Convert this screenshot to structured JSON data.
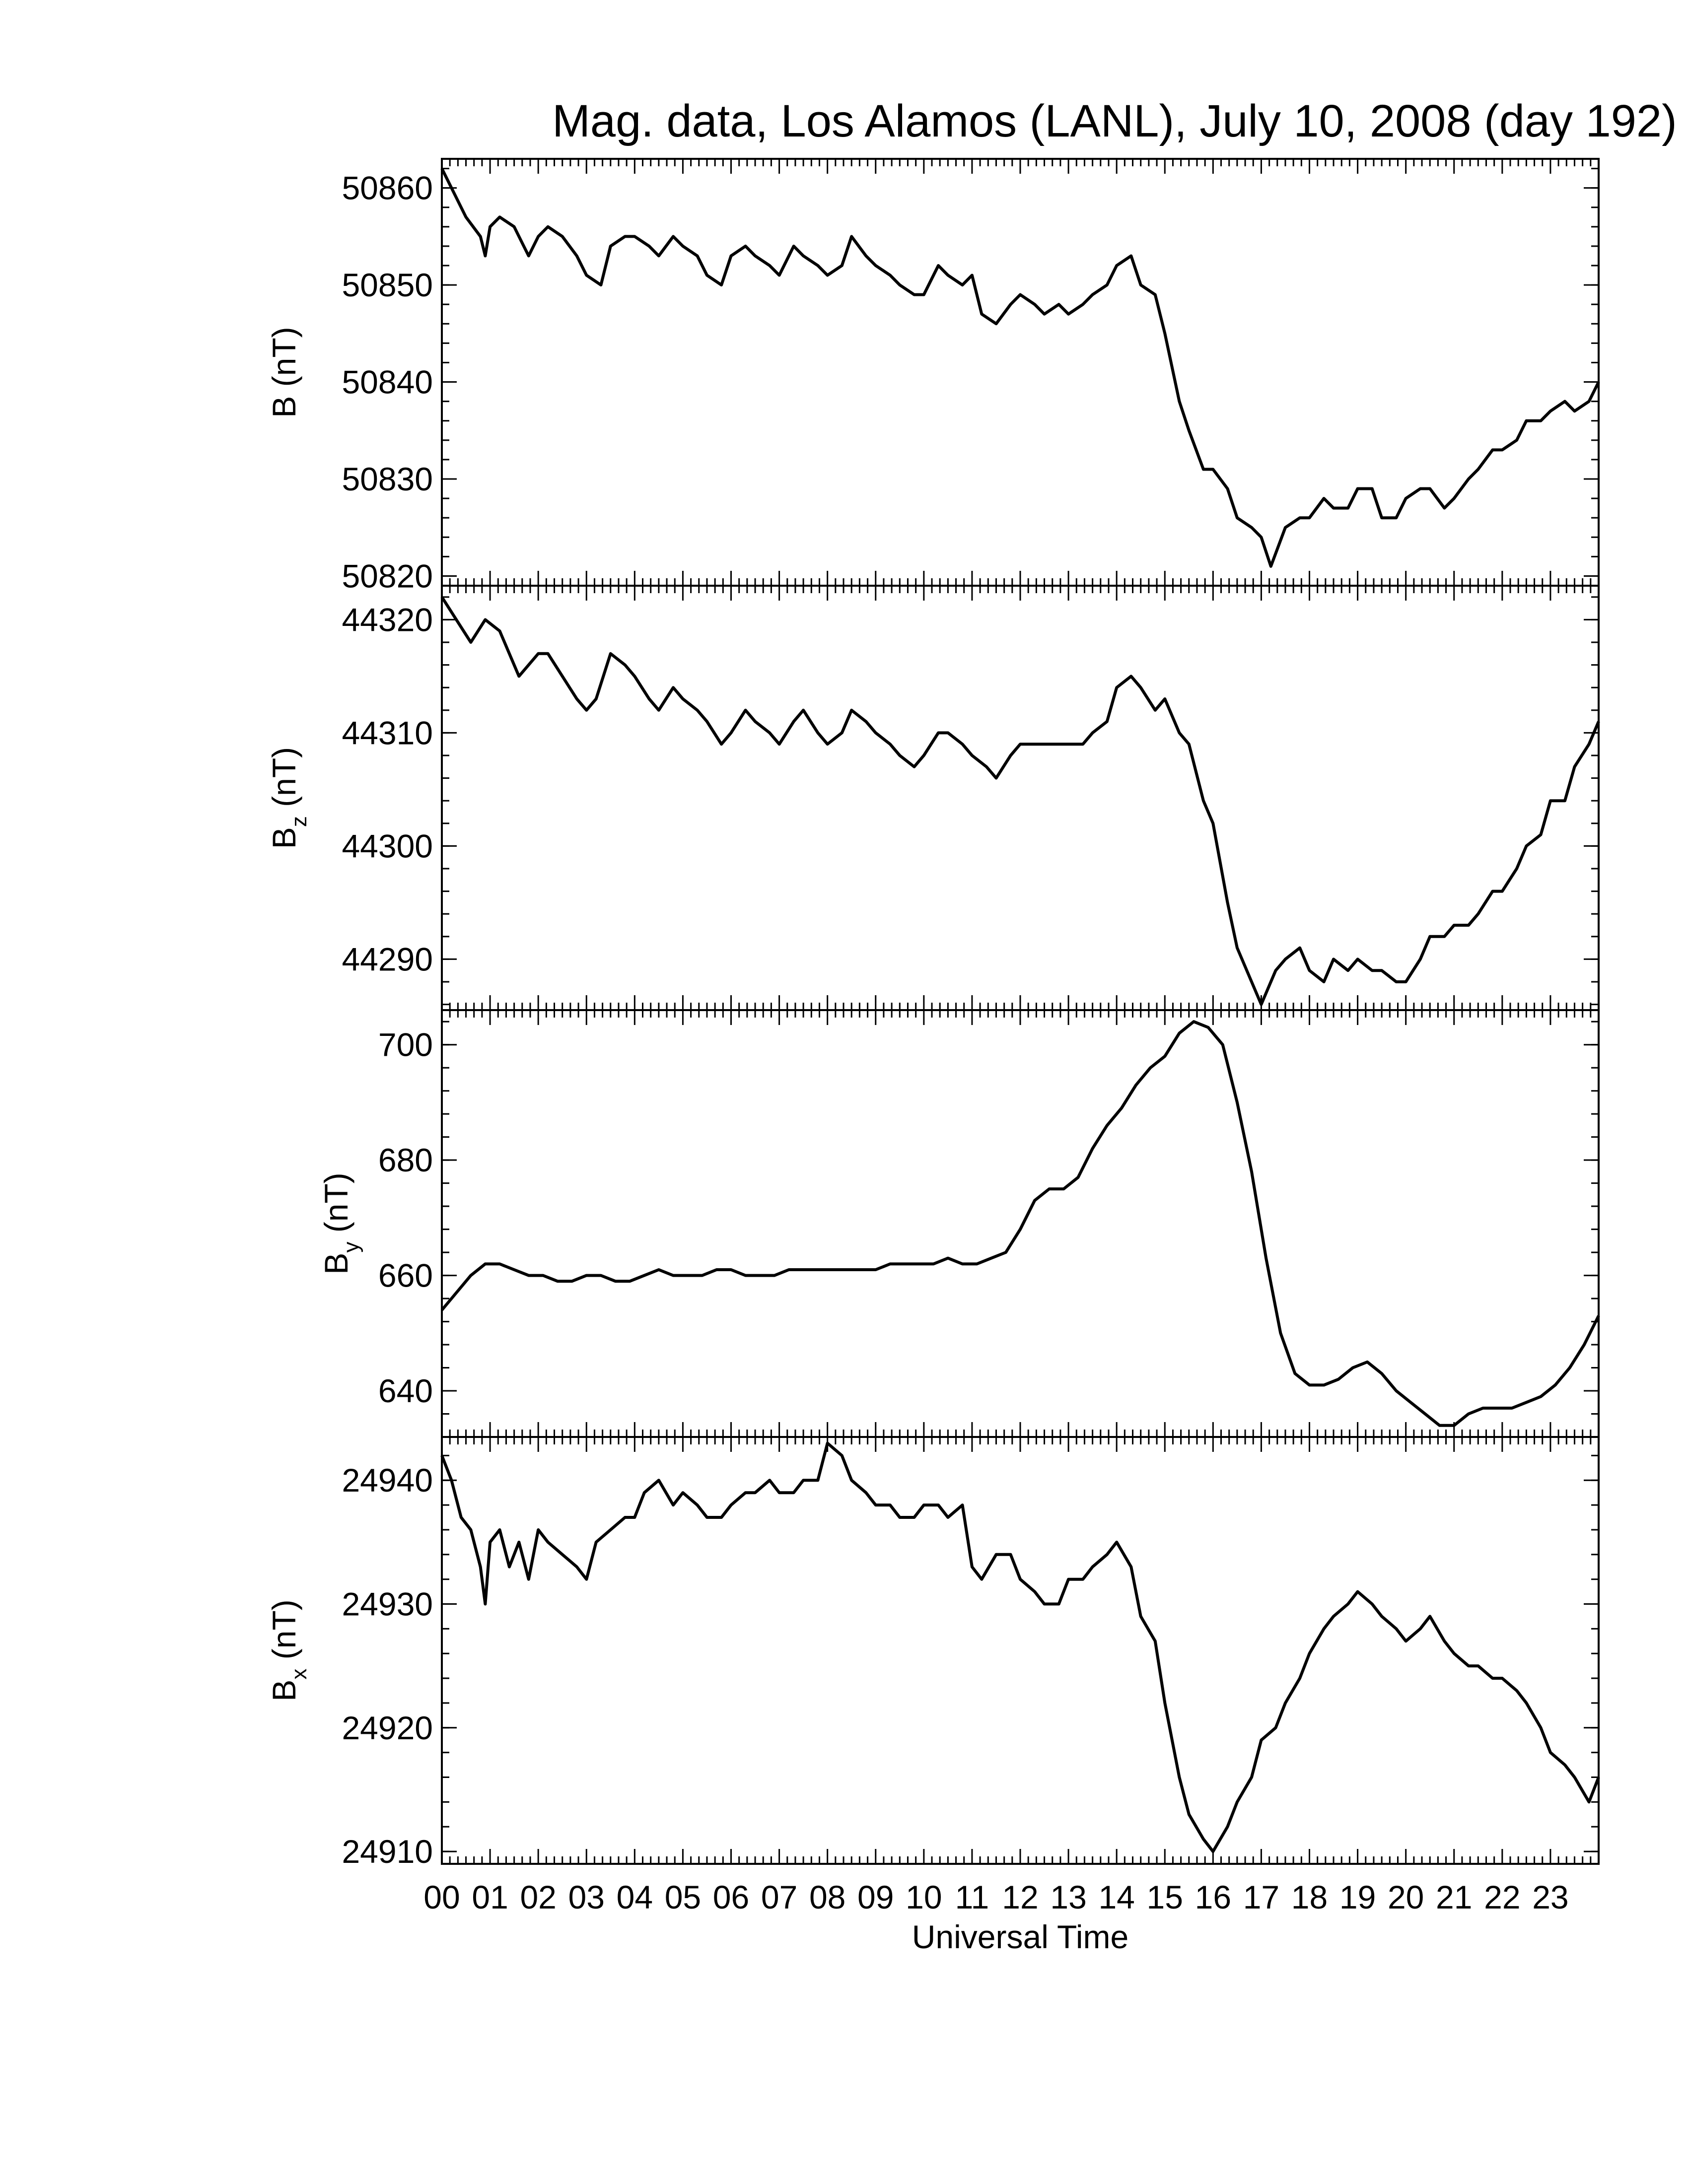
{
  "chart_data": {
    "type": "line",
    "title": "Mag. data, Los Alamos (LANL), July 10, 2008 (day 192)",
    "xlabel": "Universal Time",
    "x_unit": "hour",
    "xlim": [
      0,
      24
    ],
    "x_tick_labels": [
      "00",
      "01",
      "02",
      "03",
      "04",
      "05",
      "06",
      "07",
      "08",
      "09",
      "10",
      "11",
      "12",
      "13",
      "14",
      "15",
      "16",
      "17",
      "18",
      "19",
      "20",
      "21",
      "22",
      "23"
    ],
    "panels": [
      {
        "id": "B",
        "ylabel": {
          "main": "B",
          "sub": "",
          "unit": "(nT)"
        },
        "ylim": [
          50819,
          50863
        ],
        "yticks": [
          "50820",
          "50830",
          "50840",
          "50850",
          "50860"
        ],
        "series": [
          {
            "x": [
              0,
              0.2,
              0.5,
              0.8,
              0.9,
              1.0,
              1.2,
              1.5,
              1.7,
              1.8,
              2.0,
              2.2,
              2.5,
              2.8,
              3.0,
              3.3,
              3.5,
              3.8,
              4.0,
              4.3,
              4.5,
              4.8,
              5.0,
              5.3,
              5.5,
              5.8,
              6.0,
              6.3,
              6.5,
              6.8,
              7.0,
              7.3,
              7.5,
              7.8,
              8.0,
              8.3,
              8.5,
              8.8,
              9.0,
              9.3,
              9.5,
              9.8,
              10.0,
              10.3,
              10.5,
              10.8,
              11.0,
              11.2,
              11.5,
              11.8,
              12.0,
              12.3,
              12.5,
              12.8,
              13.0,
              13.3,
              13.5,
              13.8,
              14.0,
              14.3,
              14.5,
              14.8,
              15.0,
              15.3,
              15.5,
              15.8,
              16.0,
              16.3,
              16.5,
              16.8,
              17.0,
              17.2,
              17.5,
              17.8,
              18.0,
              18.3,
              18.5,
              18.8,
              19.0,
              19.3,
              19.5,
              19.8,
              20.0,
              20.3,
              20.5,
              20.8,
              21.0,
              21.3,
              21.5,
              21.8,
              22.0,
              22.3,
              22.5,
              22.8,
              23.0,
              23.3,
              23.5,
              23.8,
              24.0
            ],
            "y": [
              50862,
              50860,
              50857,
              50855,
              50853,
              50856,
              50857,
              50856,
              50854,
              50853,
              50855,
              50856,
              50855,
              50853,
              50851,
              50850,
              50854,
              50855,
              50855,
              50854,
              50853,
              50855,
              50854,
              50853,
              50851,
              50850,
              50853,
              50854,
              50853,
              50852,
              50851,
              50854,
              50853,
              50852,
              50851,
              50852,
              50855,
              50853,
              50852,
              50851,
              50850,
              50849,
              50849,
              50852,
              50851,
              50850,
              50851,
              50847,
              50846,
              50848,
              50849,
              50848,
              50847,
              50848,
              50847,
              50848,
              50849,
              50850,
              50852,
              50853,
              50850,
              50849,
              50845,
              50838,
              50835,
              50831,
              50831,
              50829,
              50826,
              50825,
              50824,
              50821,
              50825,
              50826,
              50826,
              50828,
              50827,
              50827,
              50829,
              50829,
              50826,
              50826,
              50828,
              50829,
              50829,
              50827,
              50828,
              50830,
              50831,
              50833,
              50833,
              50834,
              50836,
              50836,
              50837,
              50838,
              50837,
              50838,
              50840
            ]
          }
        ]
      },
      {
        "id": "Bz",
        "ylabel": {
          "main": "B",
          "sub": "z",
          "unit": "(nT)"
        },
        "ylim": [
          44285.5,
          44323
        ],
        "yticks": [
          "44290",
          "44300",
          "44310",
          "44320"
        ],
        "series": [
          {
            "x": [
              0,
              0.3,
              0.6,
              0.9,
              1.2,
              1.4,
              1.6,
              1.8,
              2.0,
              2.2,
              2.5,
              2.8,
              3.0,
              3.2,
              3.5,
              3.8,
              4.0,
              4.3,
              4.5,
              4.8,
              5.0,
              5.3,
              5.5,
              5.8,
              6.0,
              6.3,
              6.5,
              6.8,
              7.0,
              7.3,
              7.5,
              7.8,
              8.0,
              8.3,
              8.5,
              8.8,
              9.0,
              9.3,
              9.5,
              9.8,
              10.0,
              10.3,
              10.5,
              10.8,
              11.0,
              11.3,
              11.5,
              11.8,
              12.0,
              12.3,
              12.5,
              12.8,
              13.0,
              13.3,
              13.5,
              13.8,
              14.0,
              14.3,
              14.5,
              14.8,
              15.0,
              15.3,
              15.5,
              15.8,
              16.0,
              16.3,
              16.5,
              16.8,
              17.0,
              17.3,
              17.5,
              17.8,
              18.0,
              18.3,
              18.5,
              18.8,
              19.0,
              19.3,
              19.5,
              19.8,
              20.0,
              20.3,
              20.5,
              20.8,
              21.0,
              21.3,
              21.5,
              21.8,
              22.0,
              22.3,
              22.5,
              22.8,
              23.0,
              23.3,
              23.5,
              23.8,
              24.0
            ],
            "y": [
              44322,
              44320,
              44318,
              44320,
              44319,
              44317,
              44315,
              44316,
              44317,
              44317,
              44315,
              44313,
              44312,
              44313,
              44317,
              44316,
              44315,
              44313,
              44312,
              44314,
              44313,
              44312,
              44311,
              44309,
              44310,
              44312,
              44311,
              44310,
              44309,
              44311,
              44312,
              44310,
              44309,
              44310,
              44312,
              44311,
              44310,
              44309,
              44308,
              44307,
              44308,
              44310,
              44310,
              44309,
              44308,
              44307,
              44306,
              44308,
              44309,
              44309,
              44309,
              44309,
              44309,
              44309,
              44310,
              44311,
              44314,
              44315,
              44314,
              44312,
              44313,
              44310,
              44309,
              44304,
              44302,
              44295,
              44291,
              44288,
              44286,
              44289,
              44290,
              44291,
              44289,
              44288,
              44290,
              44289,
              44290,
              44289,
              44289,
              44288,
              44288,
              44290,
              44292,
              44292,
              44293,
              44293,
              44294,
              44296,
              44296,
              44298,
              44300,
              44301,
              44304,
              44304,
              44307,
              44309,
              44311
            ]
          }
        ]
      },
      {
        "id": "By",
        "ylabel": {
          "main": "B",
          "sub": "y",
          "unit": "(nT)"
        },
        "ylim": [
          632,
          706
        ],
        "yticks": [
          "640",
          "660",
          "680",
          "700"
        ],
        "series": [
          {
            "x": [
              0,
              0.3,
              0.6,
              0.9,
              1.2,
              1.5,
              1.8,
              2.1,
              2.4,
              2.7,
              3.0,
              3.3,
              3.6,
              3.9,
              4.2,
              4.5,
              4.8,
              5.1,
              5.4,
              5.7,
              6.0,
              6.3,
              6.6,
              6.9,
              7.2,
              7.5,
              7.8,
              8.1,
              8.4,
              8.7,
              9.0,
              9.3,
              9.6,
              9.9,
              10.2,
              10.5,
              10.8,
              11.1,
              11.4,
              11.7,
              12.0,
              12.3,
              12.6,
              12.9,
              13.2,
              13.5,
              13.8,
              14.1,
              14.4,
              14.7,
              15.0,
              15.3,
              15.6,
              15.9,
              16.2,
              16.5,
              16.8,
              17.1,
              17.4,
              17.7,
              18.0,
              18.3,
              18.6,
              18.9,
              19.2,
              19.5,
              19.8,
              20.1,
              20.4,
              20.7,
              21.0,
              21.3,
              21.6,
              21.9,
              22.2,
              22.5,
              22.8,
              23.1,
              23.4,
              23.7,
              24.0
            ],
            "y": [
              654,
              657,
              660,
              662,
              662,
              661,
              660,
              660,
              659,
              659,
              660,
              660,
              659,
              659,
              660,
              661,
              660,
              660,
              660,
              661,
              661,
              660,
              660,
              660,
              661,
              661,
              661,
              661,
              661,
              661,
              661,
              662,
              662,
              662,
              662,
              663,
              662,
              662,
              663,
              664,
              668,
              673,
              675,
              675,
              677,
              682,
              686,
              689,
              693,
              696,
              698,
              702,
              704,
              703,
              700,
              690,
              678,
              663,
              650,
              643,
              641,
              641,
              642,
              644,
              645,
              643,
              640,
              638,
              636,
              634,
              634,
              636,
              637,
              637,
              637,
              638,
              639,
              641,
              644,
              648,
              653
            ]
          }
        ]
      },
      {
        "id": "Bx",
        "ylabel": {
          "main": "B",
          "sub": "x",
          "unit": "(nT)"
        },
        "ylim": [
          24909,
          24943.5
        ],
        "yticks": [
          "24910",
          "24920",
          "24930",
          "24940"
        ],
        "series": [
          {
            "x": [
              0,
              0.2,
              0.4,
              0.6,
              0.8,
              0.9,
              1.0,
              1.2,
              1.4,
              1.6,
              1.8,
              2.0,
              2.2,
              2.5,
              2.8,
              3.0,
              3.2,
              3.5,
              3.8,
              4.0,
              4.2,
              4.5,
              4.8,
              5.0,
              5.3,
              5.5,
              5.8,
              6.0,
              6.3,
              6.5,
              6.8,
              7.0,
              7.3,
              7.5,
              7.8,
              8.0,
              8.3,
              8.5,
              8.8,
              9.0,
              9.3,
              9.5,
              9.8,
              10.0,
              10.3,
              10.5,
              10.8,
              11.0,
              11.2,
              11.5,
              11.8,
              12.0,
              12.3,
              12.5,
              12.8,
              13.0,
              13.3,
              13.5,
              13.8,
              14.0,
              14.3,
              14.5,
              14.8,
              15.0,
              15.3,
              15.5,
              15.8,
              16.0,
              16.3,
              16.5,
              16.8,
              17.0,
              17.3,
              17.5,
              17.8,
              18.0,
              18.3,
              18.5,
              18.8,
              19.0,
              19.3,
              19.5,
              19.8,
              20.0,
              20.3,
              20.5,
              20.8,
              21.0,
              21.3,
              21.5,
              21.8,
              22.0,
              22.3,
              22.5,
              22.8,
              23.0,
              23.3,
              23.5,
              23.8,
              24.0
            ],
            "y": [
              24942,
              24940,
              24937,
              24936,
              24933,
              24930,
              24935,
              24936,
              24933,
              24935,
              24932,
              24936,
              24935,
              24934,
              24933,
              24932,
              24935,
              24936,
              24937,
              24937,
              24939,
              24940,
              24938,
              24939,
              24938,
              24937,
              24937,
              24938,
              24939,
              24939,
              24940,
              24939,
              24939,
              24940,
              24940,
              24943,
              24942,
              24940,
              24939,
              24938,
              24938,
              24937,
              24937,
              24938,
              24938,
              24937,
              24938,
              24933,
              24932,
              24934,
              24934,
              24932,
              24931,
              24930,
              24930,
              24932,
              24932,
              24933,
              24934,
              24935,
              24933,
              24929,
              24927,
              24922,
              24916,
              24913,
              24911,
              24910,
              24912,
              24914,
              24916,
              24919,
              24920,
              24922,
              24924,
              24926,
              24928,
              24929,
              24930,
              24931,
              24930,
              24929,
              24928,
              24927,
              24928,
              24929,
              24927,
              24926,
              24925,
              24925,
              24924,
              24924,
              24923,
              24922,
              24920,
              24918,
              24917,
              24916,
              24914,
              24916
            ]
          }
        ]
      }
    ]
  }
}
